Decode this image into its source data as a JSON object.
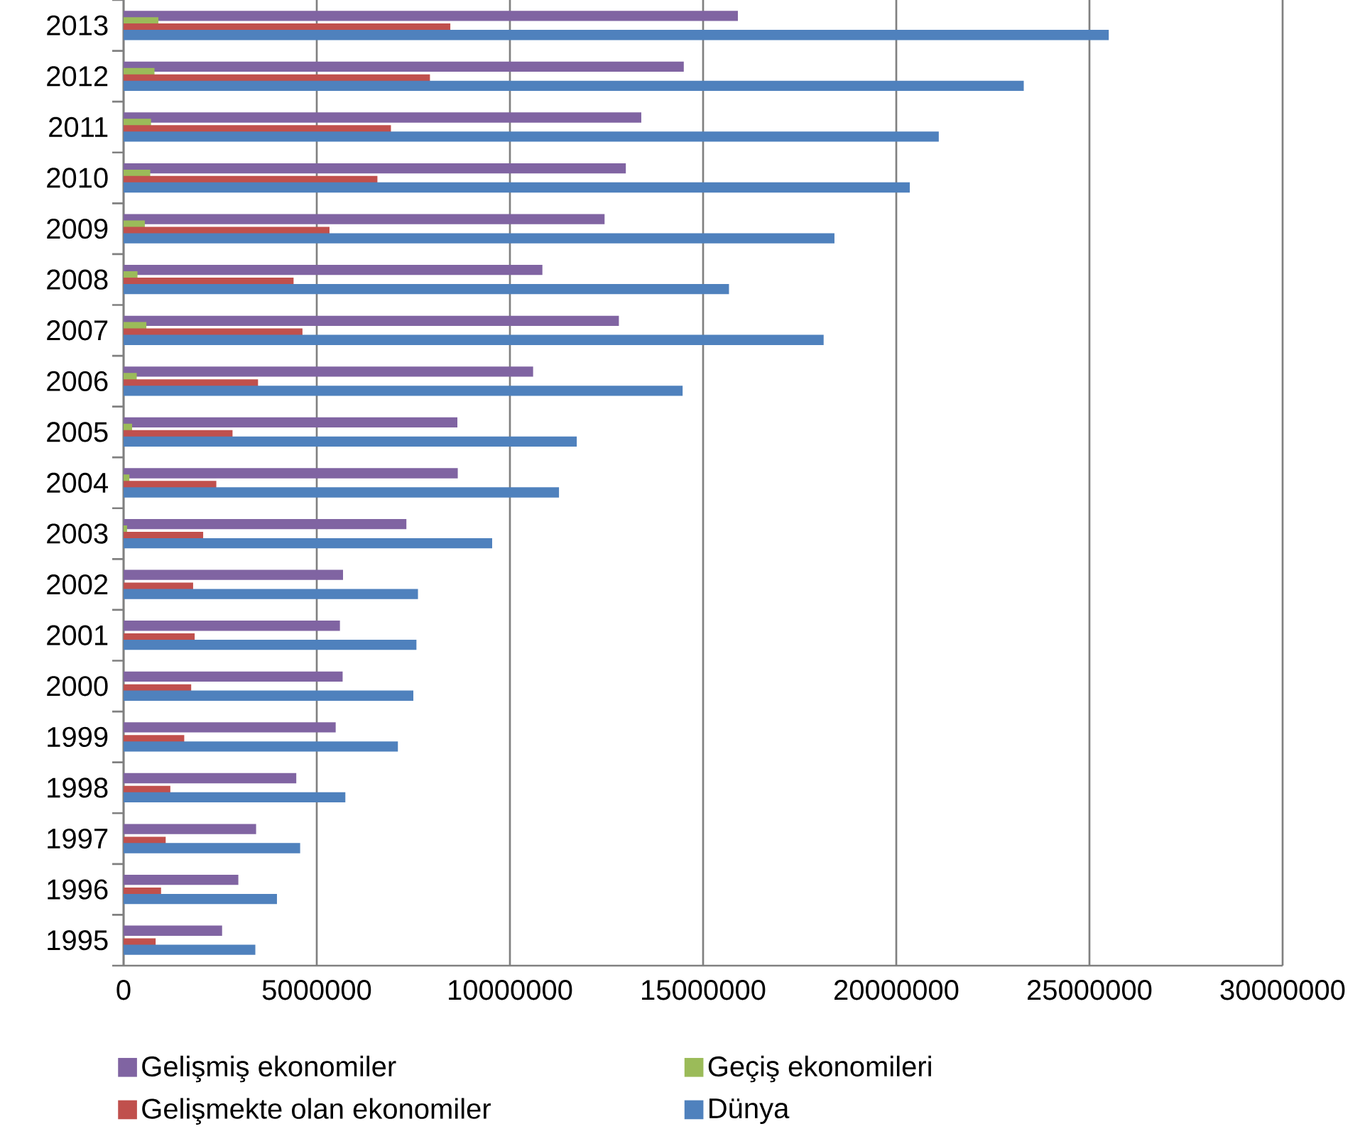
{
  "chart_data": {
    "type": "bar",
    "orientation": "horizontal",
    "categories": [
      "2013",
      "2012",
      "2011",
      "2010",
      "2009",
      "2008",
      "2007",
      "2006",
      "2005",
      "2004",
      "2003",
      "2002",
      "2001",
      "2000",
      "1999",
      "1998",
      "1997",
      "1996",
      "1995"
    ],
    "series": [
      {
        "name": "Gelişmiş ekonomiler",
        "color": "#8064a2",
        "values": [
          15900000,
          14500000,
          13400000,
          13000000,
          12450000,
          10840000,
          12820000,
          10600000,
          8640000,
          8650000,
          7320000,
          5680000,
          5600000,
          5670000,
          5490000,
          4470000,
          3430000,
          2970000,
          2550000
        ]
      },
      {
        "name": "Geçiş ekonomileri",
        "color": "#9bbb59",
        "values": [
          900000,
          800000,
          710000,
          690000,
          550000,
          360000,
          590000,
          340000,
          220000,
          150000,
          90000,
          null,
          null,
          null,
          null,
          null,
          null,
          null,
          null
        ]
      },
      {
        "name": "Gelişmekte olan ekonomiler",
        "color": "#c0504d",
        "values": [
          8460000,
          7930000,
          6920000,
          6570000,
          5330000,
          4400000,
          4630000,
          3480000,
          2820000,
          2400000,
          2060000,
          1800000,
          1840000,
          1750000,
          1570000,
          1210000,
          1090000,
          970000,
          830000
        ]
      },
      {
        "name": "Dünya",
        "color": "#4f81bd",
        "values": [
          25500000,
          23300000,
          21100000,
          20350000,
          18400000,
          15670000,
          18120000,
          14470000,
          11730000,
          11270000,
          9540000,
          7620000,
          7580000,
          7500000,
          7100000,
          5740000,
          4570000,
          3970000,
          3410000
        ]
      }
    ],
    "xlim": [
      0,
      30000000
    ],
    "xticks": [
      0,
      5000000,
      10000000,
      15000000,
      20000000,
      25000000,
      30000000
    ],
    "grid": "x",
    "legend": "bottom"
  }
}
